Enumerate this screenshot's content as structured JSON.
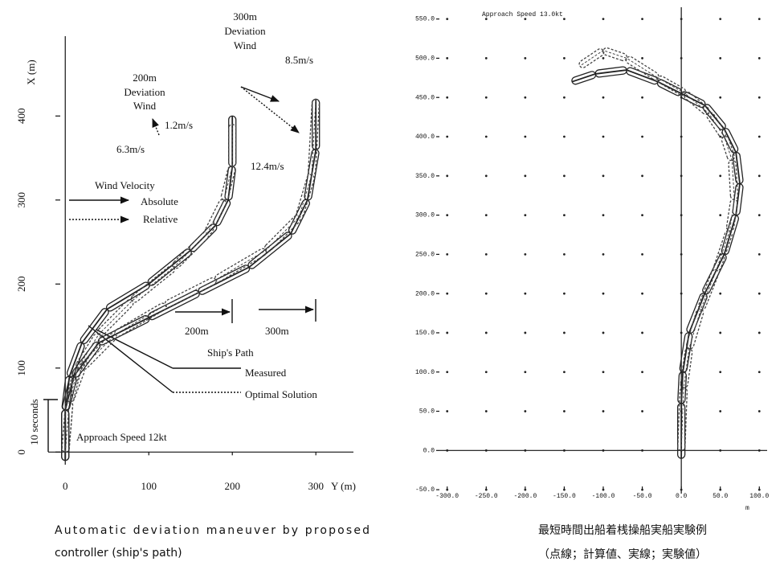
{
  "chart_data": [
    {
      "type": "line",
      "xlabel": "Y (m)",
      "ylabel": "X (m)",
      "xlim": [
        -6,
        345
      ],
      "ylim": [
        -15,
        495
      ],
      "xticks": [
        0,
        100,
        200,
        300
      ],
      "yticks": [
        0,
        100,
        200,
        300,
        400
      ],
      "series": [
        {
          "style": "solid",
          "color": "#222",
          "x": [
            0,
            0,
            5,
            20,
            50,
            100,
            150,
            180,
            195,
            200,
            200
          ],
          "values": [
            -10,
            50,
            90,
            130,
            170,
            200,
            240,
            270,
            300,
            340,
            400
          ]
        },
        {
          "style": "solid",
          "color": "#222",
          "x": [
            0,
            0,
            10,
            40,
            100,
            160,
            220,
            270,
            290,
            300,
            300
          ],
          "values": [
            -10,
            50,
            90,
            130,
            160,
            190,
            220,
            260,
            300,
            360,
            420
          ]
        },
        {
          "style": "dotted",
          "color": "#444",
          "x": [
            0,
            5,
            15,
            40,
            80,
            130,
            170,
            190,
            200,
            200
          ],
          "values": [
            0,
            60,
            100,
            140,
            180,
            220,
            260,
            300,
            340,
            390
          ]
        },
        {
          "style": "dotted",
          "color": "#444",
          "x": [
            0,
            5,
            20,
            60,
            120,
            180,
            240,
            280,
            295,
            300
          ],
          "values": [
            0,
            60,
            100,
            140,
            175,
            205,
            240,
            280,
            330,
            420
          ]
        }
      ],
      "annotations": [
        "300m",
        "Deviation",
        "Wind",
        "8.5m/s",
        "200m",
        "Deviation",
        "Wind",
        "1.2m/s",
        "6.3m/s",
        "12.4m/s",
        "Wind Velocity",
        "Absolute",
        "Relative",
        "200m",
        "300m",
        "Ship's Path",
        "Measured",
        "Optimal Solution",
        "10 seconds",
        "Approach Speed 12kt"
      ],
      "caption": [
        "Automatic deviation maneuver by proposed",
        "controller (ship's path)"
      ]
    },
    {
      "type": "line",
      "grid": "dots",
      "xunit": "m",
      "xlim": [
        -310,
        110
      ],
      "ylim": [
        -55,
        565
      ],
      "xticks": [
        {
          "value": -300,
          "label": "-300.0"
        },
        {
          "value": -250,
          "label": "-250.0"
        },
        {
          "value": -200,
          "label": "-200.0"
        },
        {
          "value": -150,
          "label": "-150.0"
        },
        {
          "value": -100,
          "label": "-100.0"
        },
        {
          "value": -50,
          "label": "-50.0"
        },
        {
          "value": 0,
          "label": "0.0"
        },
        {
          "value": 50,
          "label": "50.0"
        },
        {
          "value": 100,
          "label": "100.0"
        }
      ],
      "yticks": [
        {
          "value": -50,
          "label": "-50.0"
        },
        {
          "value": 0,
          "label": "0.0"
        },
        {
          "value": 50,
          "label": "50.0"
        },
        {
          "value": 100,
          "label": "100.0"
        },
        {
          "value": 150,
          "label": "150.0"
        },
        {
          "value": 200,
          "label": "200.0"
        },
        {
          "value": 250,
          "label": "250.0"
        },
        {
          "value": 300,
          "label": "300.0"
        },
        {
          "value": 350,
          "label": "350.0"
        },
        {
          "value": 400,
          "label": "400.0"
        },
        {
          "value": 450,
          "label": "450.0"
        },
        {
          "value": 500,
          "label": "500.0"
        },
        {
          "value": 550,
          "label": "550.0"
        }
      ],
      "series": [
        {
          "style": "solid",
          "color": "#222",
          "x": [
            0,
            0,
            2,
            10,
            30,
            55,
            70,
            75,
            70,
            55,
            30,
            0,
            -30,
            -70,
            -110,
            -140
          ],
          "values": [
            -10,
            60,
            100,
            150,
            200,
            250,
            300,
            340,
            380,
            410,
            440,
            455,
            470,
            485,
            480,
            470
          ]
        },
        {
          "style": "dotted",
          "color": "#444",
          "x": [
            0,
            3,
            10,
            25,
            45,
            62,
            68,
            65,
            55,
            35,
            5,
            -30,
            -70,
            -100,
            -130
          ],
          "values": [
            0,
            80,
            130,
            180,
            230,
            280,
            320,
            370,
            400,
            430,
            455,
            475,
            500,
            510,
            490
          ]
        }
      ],
      "annotations": [
        "Approach Speed 13.0kt"
      ],
      "caption": [
        "最短時間出船着桟操船実船実験例",
        "（点線；計算値、実線；実験値）"
      ]
    }
  ]
}
